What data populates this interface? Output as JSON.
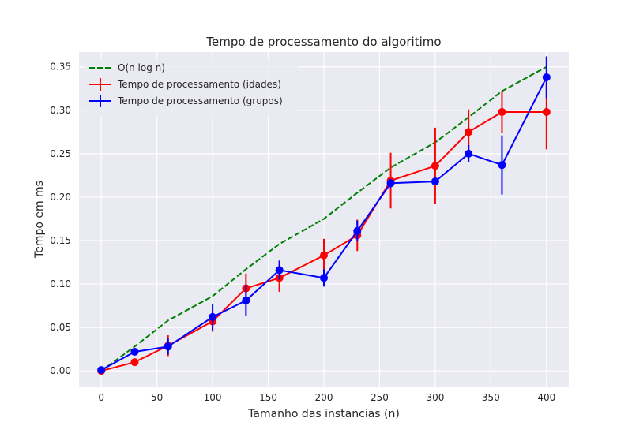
{
  "chart_data": {
    "type": "line",
    "title": "Tempo de processamento do algoritimo",
    "xlabel": "Tamanho das instancias (n)",
    "ylabel": "Tempo em ms",
    "xlim": [
      -20,
      420
    ],
    "ylim": [
      -0.018,
      0.367
    ],
    "xticks": [
      0,
      50,
      100,
      150,
      200,
      250,
      300,
      350,
      400
    ],
    "yticks": [
      0.0,
      0.05,
      0.1,
      0.15,
      0.2,
      0.25,
      0.3,
      0.35
    ],
    "xtick_labels": [
      "0",
      "50",
      "100",
      "150",
      "200",
      "250",
      "300",
      "350",
      "400"
    ],
    "ytick_labels": [
      "0.00",
      "0.05",
      "0.10",
      "0.15",
      "0.20",
      "0.25",
      "0.30",
      "0.35"
    ],
    "grid": true,
    "legend_position": "top-left",
    "x": [
      0,
      30,
      60,
      100,
      130,
      160,
      200,
      230,
      260,
      300,
      330,
      360,
      400
    ],
    "series": [
      {
        "name": "O(n log n)",
        "style": "dashed",
        "color": "#008000",
        "markers": false,
        "values": [
          0.0,
          0.028,
          0.058,
          0.086,
          0.117,
          0.146,
          0.175,
          0.205,
          0.234,
          0.263,
          0.292,
          0.322,
          0.35
        ],
        "errors": null
      },
      {
        "name": "Tempo de processamento (idades)",
        "style": "solid",
        "color": "#ff0000",
        "markers": true,
        "values": [
          0.0,
          0.01,
          0.029,
          0.057,
          0.095,
          0.107,
          0.133,
          0.156,
          0.219,
          0.236,
          0.275,
          0.298,
          0.298
        ],
        "errors": [
          0.001,
          0.003,
          0.012,
          0.012,
          0.017,
          0.016,
          0.019,
          0.018,
          0.032,
          0.044,
          0.026,
          0.024,
          0.043
        ]
      },
      {
        "name": "Tempo de processamento (grupos)",
        "style": "solid",
        "color": "#0000ff",
        "markers": true,
        "values": [
          0.001,
          0.022,
          0.028,
          0.062,
          0.081,
          0.116,
          0.107,
          0.161,
          0.216,
          0.218,
          0.25,
          0.237,
          0.338
        ],
        "errors": [
          0.001,
          0.004,
          0.009,
          0.015,
          0.018,
          0.011,
          0.01,
          0.012,
          0.005,
          0.004,
          0.01,
          0.034,
          0.024
        ]
      }
    ]
  },
  "colors": {
    "plot_background": "#eaeaf2",
    "grid": "#ffffff",
    "page_background": "#ffffff",
    "legend_background": "#eaeaf2"
  }
}
